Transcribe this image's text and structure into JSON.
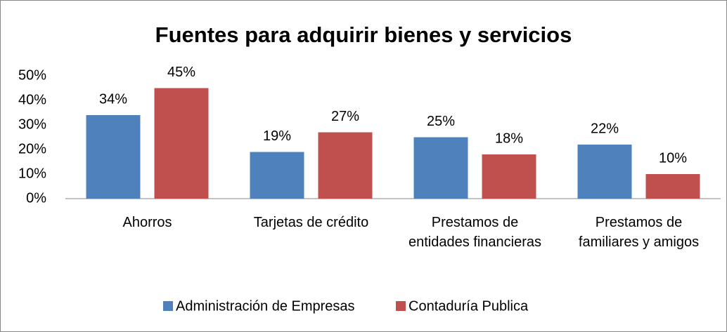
{
  "chart_data": {
    "type": "bar",
    "title": "Fuentes para adquirir bienes y servicios",
    "categories": [
      "Ahorros",
      "Tarjetas de crédito",
      "Prestamos de entidades financieras",
      "Prestamos de familiares y amigos"
    ],
    "series": [
      {
        "name": "Administración de Empresas",
        "color": "#4f81bd",
        "values": [
          34,
          19,
          25,
          22
        ],
        "value_labels": [
          "34%",
          "19%",
          "25%",
          "22%"
        ]
      },
      {
        "name": "Contaduría Publica",
        "color": "#c0504d",
        "values": [
          45,
          27,
          18,
          10
        ],
        "value_labels": [
          "45%",
          "27%",
          "18%",
          "10%"
        ]
      }
    ],
    "ylim": [
      0,
      50
    ],
    "yticks": [
      {
        "value": 0,
        "label": "0%"
      },
      {
        "value": 10,
        "label": "10%"
      },
      {
        "value": 20,
        "label": "20%"
      },
      {
        "value": 30,
        "label": "30%"
      },
      {
        "value": 40,
        "label": "40%"
      },
      {
        "value": 50,
        "label": "50%"
      }
    ],
    "grid": false,
    "legend": "bottom"
  }
}
